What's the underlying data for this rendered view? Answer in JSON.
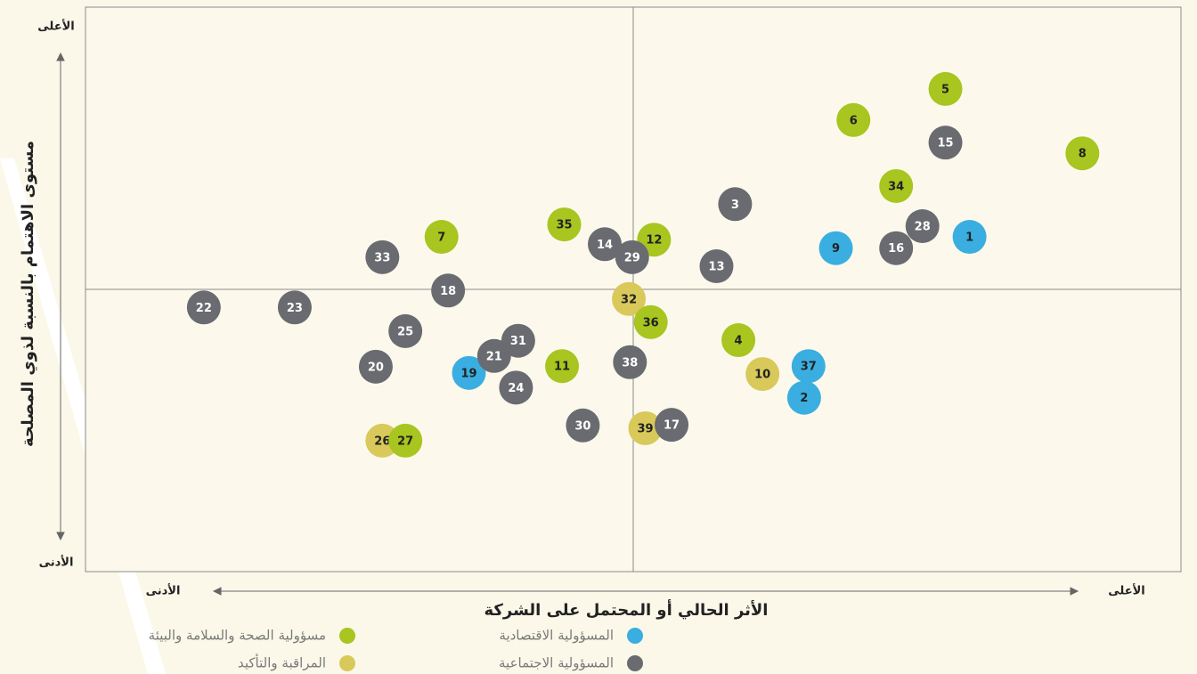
{
  "chart_data": {
    "type": "scatter",
    "xlabel": "الأثر الحالي أو المحتمل على الشركة",
    "ylabel": "مستوى الاهتمام بالنسبة لذوي المصلحة",
    "x_end_labels": {
      "low": "الأدنى",
      "high": "الأعلى"
    },
    "y_end_labels": {
      "low": "الأدنى",
      "high": "الأعلى"
    },
    "xlim": [
      0,
      100
    ],
    "ylim": [
      0,
      100
    ],
    "series": [
      {
        "name": "المسؤولية الاقتصادية",
        "color": "#3aaee0",
        "label_color": "#222222",
        "labels": [
          1,
          2,
          9,
          19,
          37
        ],
        "x": [
          80.7,
          65.6,
          68.5,
          35.0,
          66.0
        ],
        "y": [
          59.3,
          30.8,
          57.3,
          35.2,
          36.4
        ]
      },
      {
        "name": "المسؤولية الاجتماعية",
        "color": "#696b70",
        "label_color": "#ffffff",
        "labels": [
          3,
          13,
          14,
          15,
          16,
          17,
          18,
          20,
          21,
          22,
          23,
          24,
          25,
          28,
          29,
          30,
          31,
          33,
          38
        ],
        "x": [
          59.3,
          57.6,
          47.4,
          78.5,
          74.0,
          53.5,
          33.1,
          26.5,
          37.3,
          10.8,
          19.1,
          39.3,
          29.2,
          76.4,
          49.9,
          45.4,
          39.5,
          27.1,
          49.7
        ],
        "y": [
          65.1,
          54.1,
          58.0,
          76.0,
          57.3,
          26.0,
          49.8,
          36.3,
          38.2,
          46.8,
          46.8,
          32.6,
          42.6,
          61.2,
          55.7,
          25.9,
          40.9,
          55.7,
          37.1
        ]
      },
      {
        "name": "مسؤولية الصحة والسلامة والبيئة",
        "color": "#a8c520",
        "label_color": "#222222",
        "labels": [
          4,
          5,
          6,
          7,
          8,
          11,
          12,
          27,
          34,
          35,
          36
        ],
        "x": [
          59.6,
          78.5,
          70.1,
          32.5,
          91.0,
          43.5,
          51.9,
          29.2,
          74.0,
          43.7,
          51.6
        ],
        "y": [
          41.0,
          85.5,
          80.0,
          59.3,
          74.1,
          36.4,
          58.8,
          23.2,
          68.3,
          61.5,
          44.2
        ]
      },
      {
        "name": "المراقبة والتأكيد",
        "color": "#d8c95a",
        "label_color": "#222222",
        "labels": [
          10,
          26,
          32,
          39
        ],
        "x": [
          61.8,
          27.1,
          49.6,
          51.1
        ],
        "y": [
          35.0,
          23.2,
          48.3,
          25.4
        ]
      }
    ]
  }
}
